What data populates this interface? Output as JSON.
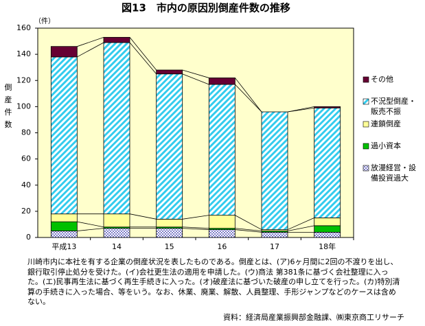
{
  "chart_data": {
    "type": "stacked_bar",
    "title": "図13　市内の原因別倒産件数の推移",
    "y_unit": "（件）",
    "y_label": "倒産件数",
    "categories": [
      "平成13",
      "14",
      "15",
      "16",
      "17",
      "18年"
    ],
    "series": [
      {
        "name": "放漫経営・設備投資過大",
        "color": "#2020a0",
        "pattern": "dots",
        "values": [
          5,
          7,
          7,
          6,
          4,
          4
        ]
      },
      {
        "name": "過小資本",
        "color": "#00c000",
        "pattern": "solid",
        "values": [
          7,
          1,
          1,
          1,
          1,
          5
        ]
      },
      {
        "name": "連鎖倒産",
        "color": "#ffff99",
        "pattern": "solid",
        "values": [
          6,
          10,
          6,
          10,
          1,
          6
        ]
      },
      {
        "name": "不況型倒産・販売不振",
        "color": "#33ccee",
        "pattern": "stripes",
        "values": [
          120,
          131,
          111,
          100,
          90,
          84
        ]
      },
      {
        "name": "その他",
        "color": "#660033",
        "pattern": "solid",
        "values": [
          8,
          4,
          3,
          5,
          0,
          1
        ]
      }
    ],
    "ylim": [
      0,
      160
    ],
    "yticks": [
      0,
      20,
      40,
      60,
      80,
      100,
      120,
      140,
      160
    ],
    "note": "川崎市内に本社を有する企業の倒産状況を表したものである。倒産とは、(ア)6ヶ月間に2回の不渡りを出し、銀行取引停止処分を受けた。(イ)会社更生法の適用を申請した。(ウ)商法 第381条に基づく会社整理に入った。(エ)民事再生法に基づく再生手続きに入った。(オ)破産法に基づいた破産の申し立てを行った。(カ)特別清算の手続きに入った場合、等をいう。なお、休業、廃業、解散、人員整理、手形ジャンプなどのケースは含めない。",
    "source": "資料：経済局産業振興部金融課、㈱東京商工リサーチ"
  }
}
